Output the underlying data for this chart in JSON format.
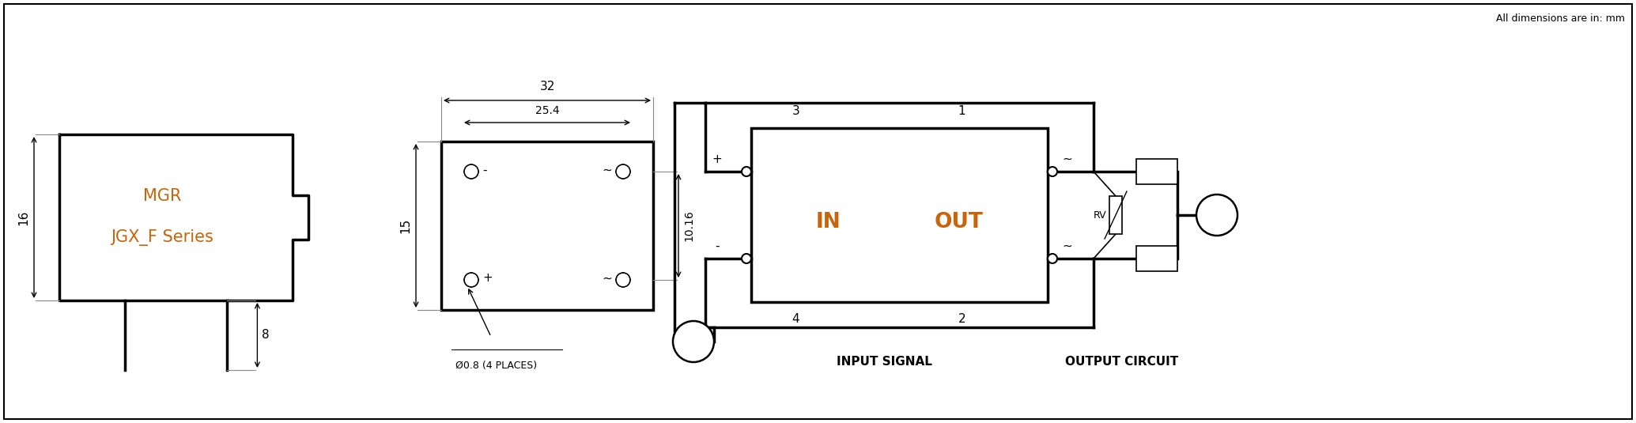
{
  "bg_color": "#ffffff",
  "line_color": "#000000",
  "text_color": "#000000",
  "orange_text": "#c8640a",
  "dim_note": "All dimensions are in: mm",
  "label1": "MGR",
  "label2": "JGX_F Series",
  "dim_16": "16",
  "dim_8": "8",
  "dim_32": "32",
  "dim_25_4": "25.4",
  "dim_15": "15",
  "dim_10_16": "10.16",
  "hole_note": "Ø0.8 (4 PLACES)",
  "input_label": "IN",
  "output_label": "OUT",
  "in_signal": "INPUT SIGNAL",
  "out_circuit": "OUTPUT CIRCUIT",
  "node3": "3",
  "node4": "4",
  "node1": "1",
  "node2": "2",
  "rv_label": "RV"
}
